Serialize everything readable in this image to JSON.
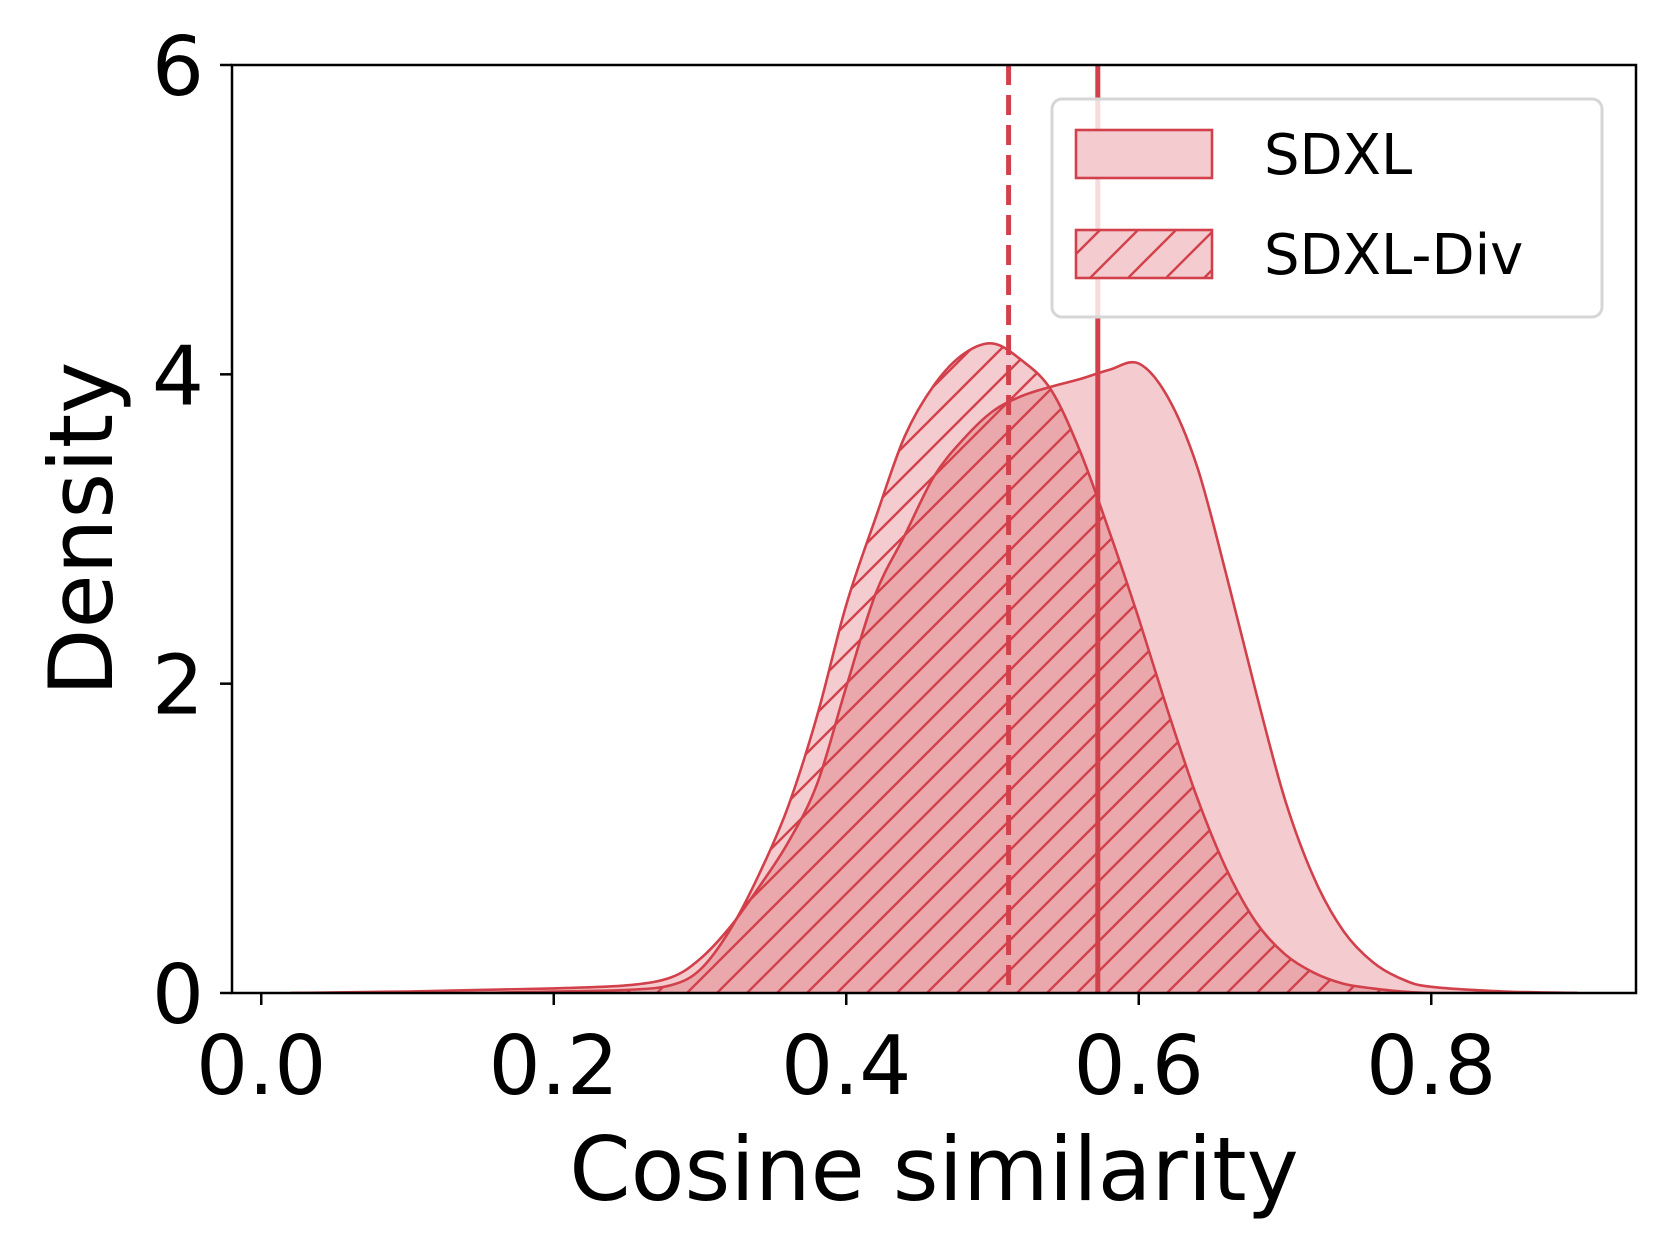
{
  "chart_data": {
    "type": "area",
    "title": "",
    "xlabel": "Cosine similarity",
    "ylabel": "Density",
    "xlim": [
      -0.02,
      0.94
    ],
    "ylim": [
      0,
      6
    ],
    "xticks": [
      0.0,
      0.2,
      0.4,
      0.6,
      0.8
    ],
    "xtick_labels": [
      "0.0",
      "0.2",
      "0.4",
      "0.6",
      "0.8"
    ],
    "yticks": [
      0,
      2,
      4,
      6
    ],
    "ytick_labels": [
      "0",
      "2",
      "4",
      "6"
    ],
    "grid": false,
    "legend_position": "top-right",
    "colors": {
      "edge": "#d2414b",
      "fill": "#f4cccf",
      "overlap": "#eaa8ad"
    },
    "series": [
      {
        "name": "SDXL",
        "hatch": "none",
        "mean": 0.572,
        "mean_line_style": "solid",
        "x": [
          0.02,
          0.1,
          0.15,
          0.2,
          0.25,
          0.28,
          0.3,
          0.32,
          0.34,
          0.36,
          0.38,
          0.4,
          0.42,
          0.44,
          0.46,
          0.48,
          0.5,
          0.52,
          0.54,
          0.56,
          0.58,
          0.6,
          0.62,
          0.64,
          0.66,
          0.68,
          0.7,
          0.72,
          0.74,
          0.76,
          0.78,
          0.8,
          0.85,
          0.9
        ],
        "y": [
          0.0,
          0.01,
          0.02,
          0.03,
          0.05,
          0.1,
          0.22,
          0.42,
          0.68,
          0.97,
          1.35,
          1.98,
          2.58,
          2.96,
          3.34,
          3.58,
          3.76,
          3.86,
          3.92,
          3.97,
          4.03,
          4.07,
          3.85,
          3.4,
          2.7,
          1.95,
          1.25,
          0.74,
          0.4,
          0.2,
          0.09,
          0.04,
          0.01,
          0.0
        ]
      },
      {
        "name": "SDXL-Div",
        "hatch": "diagonal",
        "mean": 0.511,
        "mean_line_style": "dashed",
        "x": [
          0.02,
          0.1,
          0.15,
          0.2,
          0.25,
          0.28,
          0.3,
          0.32,
          0.34,
          0.36,
          0.38,
          0.4,
          0.42,
          0.44,
          0.46,
          0.48,
          0.5,
          0.52,
          0.54,
          0.56,
          0.58,
          0.6,
          0.62,
          0.64,
          0.66,
          0.68,
          0.7,
          0.72,
          0.74,
          0.76,
          0.78,
          0.8,
          0.85,
          0.9
        ],
        "y": [
          0.0,
          0.0,
          0.0,
          0.01,
          0.02,
          0.05,
          0.15,
          0.4,
          0.76,
          1.2,
          1.79,
          2.51,
          3.07,
          3.6,
          3.93,
          4.13,
          4.2,
          4.09,
          3.9,
          3.5,
          2.98,
          2.42,
          1.82,
          1.26,
          0.8,
          0.46,
          0.25,
          0.13,
          0.06,
          0.03,
          0.01,
          0.0,
          0.0,
          0.0
        ]
      }
    ]
  }
}
